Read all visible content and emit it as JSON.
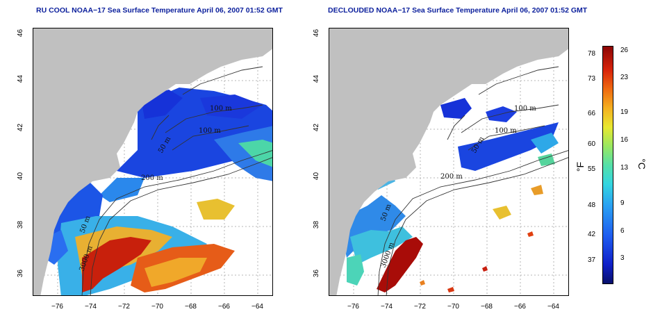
{
  "left_panel": {
    "title": "RU COOL NOAA−17 Sea Surface Temperature April 06, 2007 01:52 GMT",
    "contour_labels": [
      "100 m",
      "100 m",
      "50 m",
      "200 m",
      "50 m",
      "3000 m"
    ]
  },
  "right_panel": {
    "title": "DECLOUDED NOAA−17 Sea Surface Temperature April 06, 2007 01:52 GMT",
    "contour_labels": [
      "100 m",
      "100 m",
      "50 m",
      "200 m",
      "50 m",
      "3000 m"
    ]
  },
  "axes": {
    "x_ticks": [
      "−76",
      "−74",
      "−72",
      "−70",
      "−68",
      "−66",
      "−64"
    ],
    "y_ticks": [
      "36",
      "38",
      "40",
      "42",
      "44",
      "46"
    ]
  },
  "colorbar": {
    "fahrenheit_ticks": [
      "78",
      "73",
      "66",
      "60",
      "55",
      "48",
      "42",
      "37"
    ],
    "celsius_ticks": [
      "26",
      "23",
      "19",
      "16",
      "13",
      "9",
      "6",
      "3"
    ],
    "fahrenheit_unit": "°F",
    "celsius_unit": "°C"
  },
  "colors": {
    "land": "#c0c0c0",
    "contour": "#333333",
    "grid": "#b5b5b5",
    "title": "#0b1f9c"
  }
}
